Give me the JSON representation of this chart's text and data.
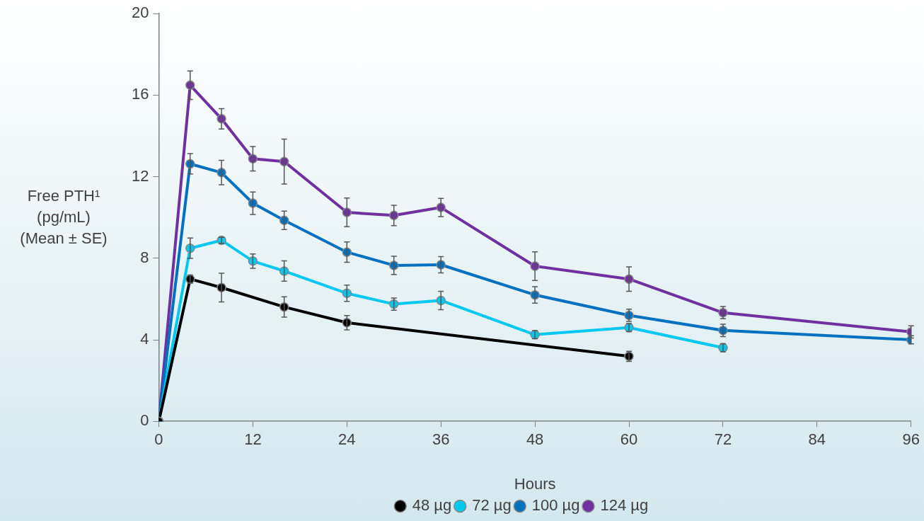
{
  "chart_data": {
    "type": "line",
    "xlabel": "Hours",
    "ylabel": "Free PTH¹\n(pg/mL)\n(Mean ± SE)",
    "xlim": [
      0,
      96
    ],
    "xticks": [
      0,
      12,
      24,
      36,
      48,
      60,
      72,
      84,
      96
    ],
    "ylim": [
      0,
      20
    ],
    "yticks": [
      0,
      4,
      8,
      12,
      16,
      20
    ],
    "grid": false,
    "legend": "bottom",
    "marker": "circle",
    "line_style": "solid",
    "series": [
      {
        "name": "48 µg",
        "color": "#000000",
        "x": [
          0,
          4,
          8,
          16,
          24,
          60
        ],
        "values": [
          0,
          6.98,
          6.56,
          5.61,
          4.84,
          3.19
        ],
        "errors": [
          null,
          0.2,
          0.7,
          0.5,
          0.35,
          0.25
        ]
      },
      {
        "name": "72 µg",
        "color": "#00c8f0",
        "x": [
          0,
          4,
          8,
          12,
          16,
          24,
          30,
          36,
          48,
          60,
          72
        ],
        "values": [
          0,
          8.49,
          8.88,
          7.86,
          7.37,
          6.28,
          5.75,
          5.93,
          4.25,
          4.6,
          3.61
        ],
        "errors": [
          null,
          0.5,
          0.15,
          0.35,
          0.5,
          0.4,
          0.3,
          0.45,
          0.2,
          0.2,
          0.2
        ]
      },
      {
        "name": "100 µg",
        "color": "#0070c0",
        "x": [
          0,
          4,
          8,
          12,
          16,
          24,
          30,
          36,
          48,
          60,
          72,
          96
        ],
        "values": [
          0,
          12.63,
          12.2,
          10.7,
          9.86,
          8.3,
          7.65,
          7.68,
          6.2,
          5.2,
          4.46,
          4.0
        ],
        "errors": [
          null,
          0.5,
          0.6,
          0.55,
          0.45,
          0.5,
          0.45,
          0.4,
          0.4,
          0.3,
          0.3,
          0.2
        ]
      },
      {
        "name": "124 µg",
        "color": "#7030a0",
        "x": [
          0,
          4,
          8,
          12,
          16,
          24,
          30,
          36,
          48,
          60,
          72,
          96
        ],
        "values": [
          0,
          16.49,
          14.84,
          12.88,
          12.74,
          10.25,
          10.1,
          10.49,
          7.61,
          6.98,
          5.33,
          4.39
        ],
        "errors": [
          null,
          0.7,
          0.5,
          0.6,
          1.1,
          0.7,
          0.5,
          0.45,
          0.7,
          0.6,
          0.3,
          0.3
        ]
      }
    ]
  }
}
